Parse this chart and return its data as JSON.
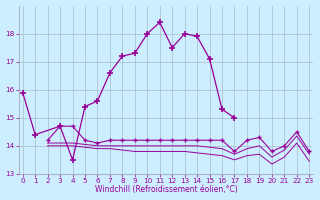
{
  "xlabel": "Windchill (Refroidissement éolien,°C)",
  "background_color": "#cceeff",
  "grid_color": "#aabbcc",
  "line_color": "#990099",
  "x": [
    0,
    1,
    2,
    3,
    4,
    5,
    6,
    7,
    8,
    9,
    10,
    11,
    12,
    13,
    14,
    15,
    16,
    17,
    18,
    19,
    20,
    21,
    22,
    23
  ],
  "s1": [
    15.9,
    14.4,
    null,
    14.7,
    13.5,
    15.4,
    15.6,
    16.6,
    17.2,
    17.3,
    18.0,
    18.4,
    17.5,
    18.0,
    17.9,
    17.1,
    15.3,
    15.0,
    null,
    null,
    null,
    null,
    null,
    null
  ],
  "s2": [
    null,
    null,
    14.2,
    14.7,
    14.7,
    14.2,
    14.1,
    14.2,
    14.2,
    14.2,
    14.2,
    14.2,
    14.2,
    14.2,
    14.2,
    14.2,
    14.2,
    13.8,
    14.2,
    14.3,
    13.8,
    14.0,
    14.5,
    13.8
  ],
  "s3": [
    null,
    null,
    14.1,
    14.1,
    14.1,
    14.05,
    14.0,
    14.0,
    14.0,
    14.0,
    14.0,
    14.0,
    14.0,
    14.0,
    14.0,
    13.95,
    13.9,
    13.7,
    13.9,
    14.0,
    13.6,
    13.85,
    14.35,
    13.7
  ],
  "s4": [
    null,
    null,
    14.0,
    14.0,
    14.0,
    13.95,
    13.9,
    13.9,
    13.85,
    13.8,
    13.8,
    13.8,
    13.8,
    13.8,
    13.75,
    13.7,
    13.65,
    13.5,
    13.65,
    13.7,
    13.35,
    13.6,
    14.1,
    13.45
  ],
  "ylim": [
    13,
    19
  ],
  "xlim": [
    -0.3,
    23.3
  ],
  "yticks": [
    13,
    14,
    15,
    16,
    17,
    18
  ],
  "xticks": [
    0,
    1,
    2,
    3,
    4,
    5,
    6,
    7,
    8,
    9,
    10,
    11,
    12,
    13,
    14,
    15,
    16,
    17,
    18,
    19,
    20,
    21,
    22,
    23
  ]
}
